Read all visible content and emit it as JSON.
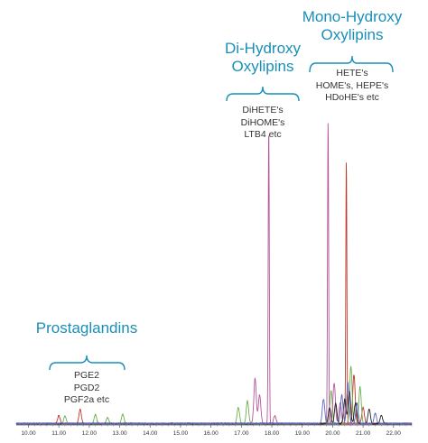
{
  "chart_data": {
    "type": "line",
    "title": "",
    "xlabel": "",
    "ylabel": "",
    "xlim": [
      9.6,
      22.6
    ],
    "ylim": [
      0,
      100
    ],
    "x_ticks": [
      "10.00",
      "11.00",
      "12.00",
      "13.00",
      "14.00",
      "15.00",
      "16.00",
      "17.00",
      "18.00",
      "19.00",
      "20.00",
      "21.00",
      "22.00"
    ],
    "grid": false,
    "legend": "none",
    "series": [
      {
        "color": "#c0392b",
        "peaks": [
          [
            11.0,
            2
          ],
          [
            11.7,
            3.5
          ],
          [
            20.45,
            64
          ],
          [
            20.7,
            12
          ],
          [
            21.0,
            4
          ]
        ]
      },
      {
        "color": "#6ab04c",
        "peaks": [
          [
            11.2,
            1.8
          ],
          [
            12.2,
            2.2
          ],
          [
            12.6,
            1.5
          ],
          [
            13.1,
            2.3
          ],
          [
            16.9,
            4
          ],
          [
            17.2,
            5.5
          ],
          [
            19.95,
            8
          ],
          [
            20.6,
            14
          ],
          [
            20.9,
            9
          ]
        ]
      },
      {
        "color": "#b5569b",
        "peaks": [
          [
            17.45,
            11
          ],
          [
            17.6,
            7
          ],
          [
            17.9,
            72
          ],
          [
            18.1,
            2
          ],
          [
            19.85,
            74
          ],
          [
            20.05,
            10
          ],
          [
            20.25,
            5
          ]
        ]
      },
      {
        "color": "#222222",
        "peaks": [
          [
            19.9,
            4
          ],
          [
            20.1,
            5
          ],
          [
            20.4,
            6
          ],
          [
            20.55,
            8
          ],
          [
            20.75,
            5
          ],
          [
            21.2,
            3.5
          ],
          [
            21.6,
            2
          ]
        ]
      },
      {
        "color": "#5b6abf",
        "peaks": [
          [
            19.7,
            6
          ],
          [
            20.3,
            7
          ],
          [
            20.5,
            10
          ],
          [
            20.8,
            5
          ],
          [
            21.4,
            2.5
          ]
        ]
      }
    ],
    "annotations": [
      {
        "title": [
          "Mono-Hydroxy",
          "Oxylipins"
        ],
        "detail": [
          "HETE's",
          "HOME's, HEPE's",
          "HDoHE's etc"
        ]
      },
      {
        "title": [
          "Di-Hydroxy",
          "Oxylipins"
        ],
        "detail": [
          "DiHETE's",
          "DiHOME's",
          "LTB4 etc"
        ]
      },
      {
        "title": [
          "Prostaglandins"
        ],
        "detail": [
          "PGE2",
          "PGD2",
          "PGF2a etc"
        ]
      }
    ]
  },
  "page": {
    "annotation_color": "#1a8fb8"
  }
}
